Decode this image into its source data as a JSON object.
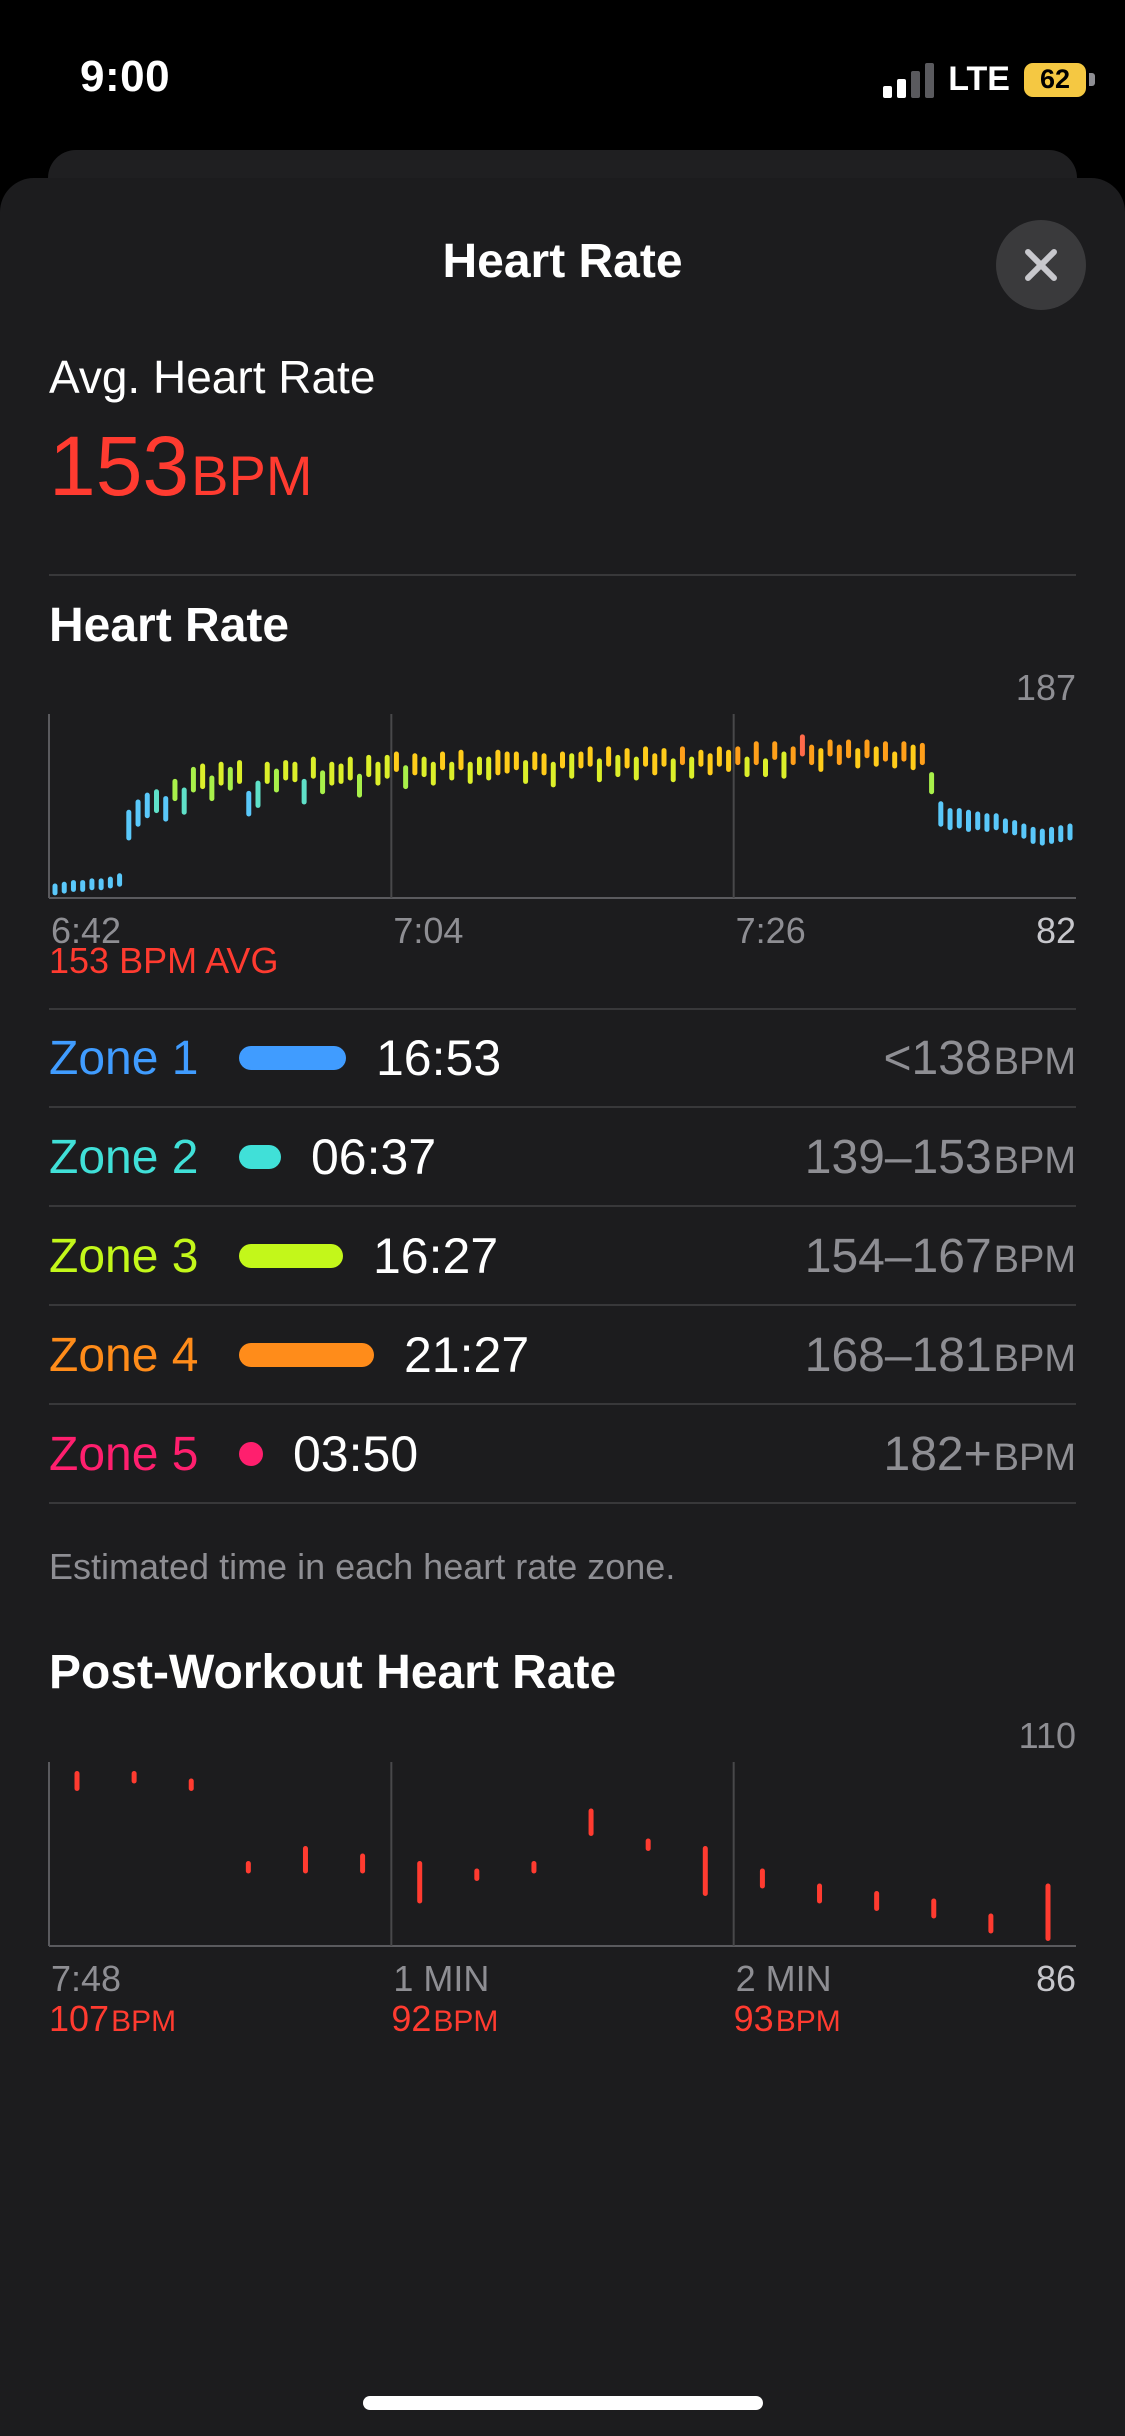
{
  "status_bar": {
    "time": "9:00",
    "network": "LTE",
    "battery": "62"
  },
  "sheet": {
    "title": "Heart Rate",
    "close_icon": "close-icon"
  },
  "summary": {
    "label": "Avg. Heart Rate",
    "value": "153",
    "unit": "BPM"
  },
  "heart_rate_chart": {
    "title": "Heart Rate",
    "y_max_label": "187",
    "y_min_label": "82",
    "x_labels": [
      "6:42",
      "7:04",
      "7:26"
    ],
    "avg_caption": "153 BPM AVG"
  },
  "zones": {
    "items": [
      {
        "name": "Zone 1",
        "time": "16:53",
        "range": "<138",
        "unit": "BPM",
        "color": "#409cff",
        "fraction": 0.79
      },
      {
        "name": "Zone 2",
        "time": "06:37",
        "range": "139–153",
        "unit": "BPM",
        "color": "#40e0d8",
        "fraction": 0.31
      },
      {
        "name": "Zone 3",
        "time": "16:27",
        "range": "154–167",
        "unit": "BPM",
        "color": "#c3f71a",
        "fraction": 0.77
      },
      {
        "name": "Zone 4",
        "time": "21:27",
        "range": "168–181",
        "unit": "BPM",
        "color": "#ff8c1a",
        "fraction": 1.0
      },
      {
        "name": "Zone 5",
        "time": "03:50",
        "range": "182+",
        "unit": "BPM",
        "color": "#ff1f6e",
        "fraction": 0.18
      }
    ],
    "note": "Estimated time in each heart rate zone."
  },
  "post_workout": {
    "title": "Post-Workout Heart Rate",
    "y_max_label": "110",
    "y_min_label": "86",
    "x_labels": [
      "7:48",
      "1 MIN",
      "2 MIN"
    ],
    "readings": [
      {
        "value": "107",
        "unit": "BPM"
      },
      {
        "value": "92",
        "unit": "BPM"
      },
      {
        "value": "93",
        "unit": "BPM"
      }
    ]
  },
  "chart_data": [
    {
      "type": "bar",
      "title": "Heart Rate",
      "ylim": [
        82,
        187
      ],
      "x_ticks": [
        "6:42",
        "7:04",
        "7:26"
      ],
      "average": 153,
      "series": [
        {
          "values": [
            [
              85,
              89
            ],
            [
              86,
              90
            ],
            [
              87,
              91
            ],
            [
              87,
              91
            ],
            [
              88,
              92
            ],
            [
              88,
              92
            ],
            [
              89,
              93
            ],
            [
              90,
              95
            ],
            [
              117,
              132
            ],
            [
              125,
              138
            ],
            [
              130,
              142
            ],
            [
              133,
              144
            ],
            [
              128,
              140
            ],
            [
              140,
              150
            ],
            [
              132,
              145
            ],
            [
              145,
              157
            ],
            [
              147,
              159
            ],
            [
              140,
              152
            ],
            [
              149,
              160
            ],
            [
              146,
              157
            ],
            [
              150,
              161
            ],
            [
              131,
              143
            ],
            [
              136,
              149
            ],
            [
              150,
              160
            ],
            [
              145,
              156
            ],
            [
              152,
              161
            ],
            [
              151,
              160
            ],
            [
              138,
              150
            ],
            [
              153,
              163
            ],
            [
              144,
              155
            ],
            [
              149,
              160
            ],
            [
              150,
              159
            ],
            [
              152,
              163
            ],
            [
              142,
              153
            ],
            [
              154,
              164
            ],
            [
              149,
              160
            ],
            [
              153,
              164
            ],
            [
              157,
              166
            ],
            [
              147,
              158
            ],
            [
              155,
              165
            ],
            [
              154,
              163
            ],
            [
              149,
              160
            ],
            [
              158,
              166
            ],
            [
              152,
              160
            ],
            [
              158,
              167
            ],
            [
              150,
              160
            ],
            [
              155,
              163
            ],
            [
              152,
              163
            ],
            [
              155,
              167
            ],
            [
              156,
              166
            ],
            [
              158,
              166
            ],
            [
              150,
              161
            ],
            [
              158,
              166
            ],
            [
              155,
              165
            ],
            [
              148,
              160
            ],
            [
              159,
              166
            ],
            [
              153,
              165
            ],
            [
              159,
              166
            ],
            [
              160,
              169
            ],
            [
              151,
              162
            ],
            [
              160,
              169
            ],
            [
              154,
              164
            ],
            [
              159,
              168
            ],
            [
              152,
              163
            ],
            [
              160,
              169
            ],
            [
              155,
              165
            ],
            [
              160,
              168
            ],
            [
              151,
              162
            ],
            [
              161,
              169
            ],
            [
              153,
              163
            ],
            [
              160,
              167
            ],
            [
              155,
              165
            ],
            [
              160,
              169
            ],
            [
              157,
              167
            ],
            [
              161,
              169
            ],
            [
              154,
              163
            ],
            [
              161,
              172
            ],
            [
              154,
              162
            ],
            [
              164,
              172
            ],
            [
              153,
              166
            ],
            [
              161,
              169
            ],
            [
              166,
              176
            ],
            [
              161,
              170
            ],
            [
              157,
              168
            ],
            [
              166,
              173
            ],
            [
              161,
              170
            ],
            [
              165,
              173
            ],
            [
              159,
              168
            ],
            [
              165,
              173
            ],
            [
              160,
              169
            ],
            [
              163,
              172
            ],
            [
              159,
              166
            ],
            [
              163,
              172
            ],
            [
              158,
              170
            ],
            [
              161,
              171
            ],
            [
              144,
              154
            ],
            [
              125,
              137
            ],
            [
              123,
              133
            ],
            [
              124,
              133
            ],
            [
              122,
              132
            ],
            [
              123,
              131
            ],
            [
              122,
              130
            ],
            [
              123,
              130
            ],
            [
              121,
              127
            ],
            [
              120,
              126
            ],
            [
              118,
              124
            ],
            [
              115,
              122
            ],
            [
              114,
              121
            ],
            [
              115,
              122
            ],
            [
              116,
              123
            ],
            [
              117,
              124
            ]
          ]
        }
      ]
    },
    {
      "type": "bar",
      "title": "Post-Workout Heart Rate",
      "ylim": [
        86,
        110
      ],
      "x_ticks": [
        "7:48",
        "1 MIN",
        "2 MIN"
      ],
      "series": [
        {
          "values": [
            [
              107,
              109
            ],
            [
              108,
              109
            ],
            [
              107,
              108
            ],
            [
              96,
              97
            ],
            [
              96,
              99
            ],
            [
              96,
              98
            ],
            [
              92,
              97
            ],
            [
              95,
              96
            ],
            [
              96,
              97
            ],
            [
              101,
              104
            ],
            [
              99,
              100
            ],
            [
              93,
              99
            ],
            [
              94,
              96
            ],
            [
              92,
              94
            ],
            [
              91,
              93
            ],
            [
              90,
              92
            ],
            [
              88,
              90
            ],
            [
              87,
              94
            ]
          ]
        }
      ]
    }
  ]
}
